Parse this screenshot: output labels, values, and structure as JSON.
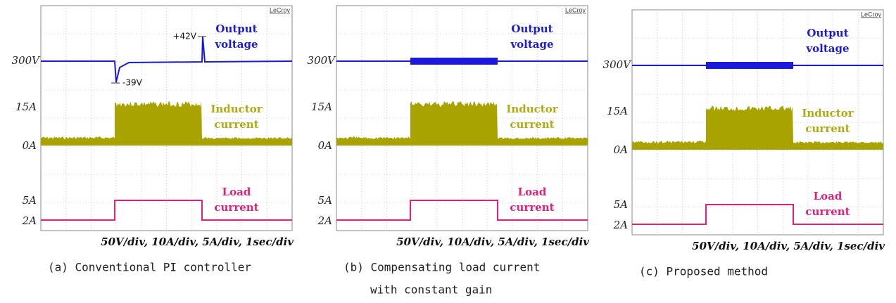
{
  "panels": [
    {
      "brand": "LeCroy",
      "levels": [
        "300V",
        "15A",
        "0A",
        "5A",
        "2A"
      ],
      "traces": {
        "output": [
          "Output",
          "voltage"
        ],
        "inductor": [
          "Inductor",
          "current"
        ],
        "load": [
          "Load",
          "current"
        ]
      },
      "annotations": [
        "+42V",
        "-39V"
      ],
      "scale": "50V/div, 10A/div, 5A/div, 1sec/div",
      "caption": [
        "(a) Conventional PI controller"
      ]
    },
    {
      "brand": "LeCroy",
      "levels": [
        "300V",
        "15A",
        "0A",
        "5A",
        "2A"
      ],
      "traces": {
        "output": [
          "Output",
          "voltage"
        ],
        "inductor": [
          "Inductor",
          "current"
        ],
        "load": [
          "Load",
          "current"
        ]
      },
      "scale": "50V/div, 10A/div, 5A/div, 1sec/div",
      "caption": [
        "(b) Compensating load current",
        "with constant gain"
      ]
    },
    {
      "brand": "LeCroy",
      "levels": [
        "300V",
        "15A",
        "0A",
        "5A",
        "2A"
      ],
      "traces": {
        "output": [
          "Output",
          "voltage"
        ],
        "inductor": [
          "Inductor",
          "current"
        ],
        "load": [
          "Load",
          "current"
        ]
      },
      "scale": "50V/div, 10A/div, 5A/div, 1sec/div",
      "caption": [
        "(c) Proposed method"
      ]
    }
  ]
}
